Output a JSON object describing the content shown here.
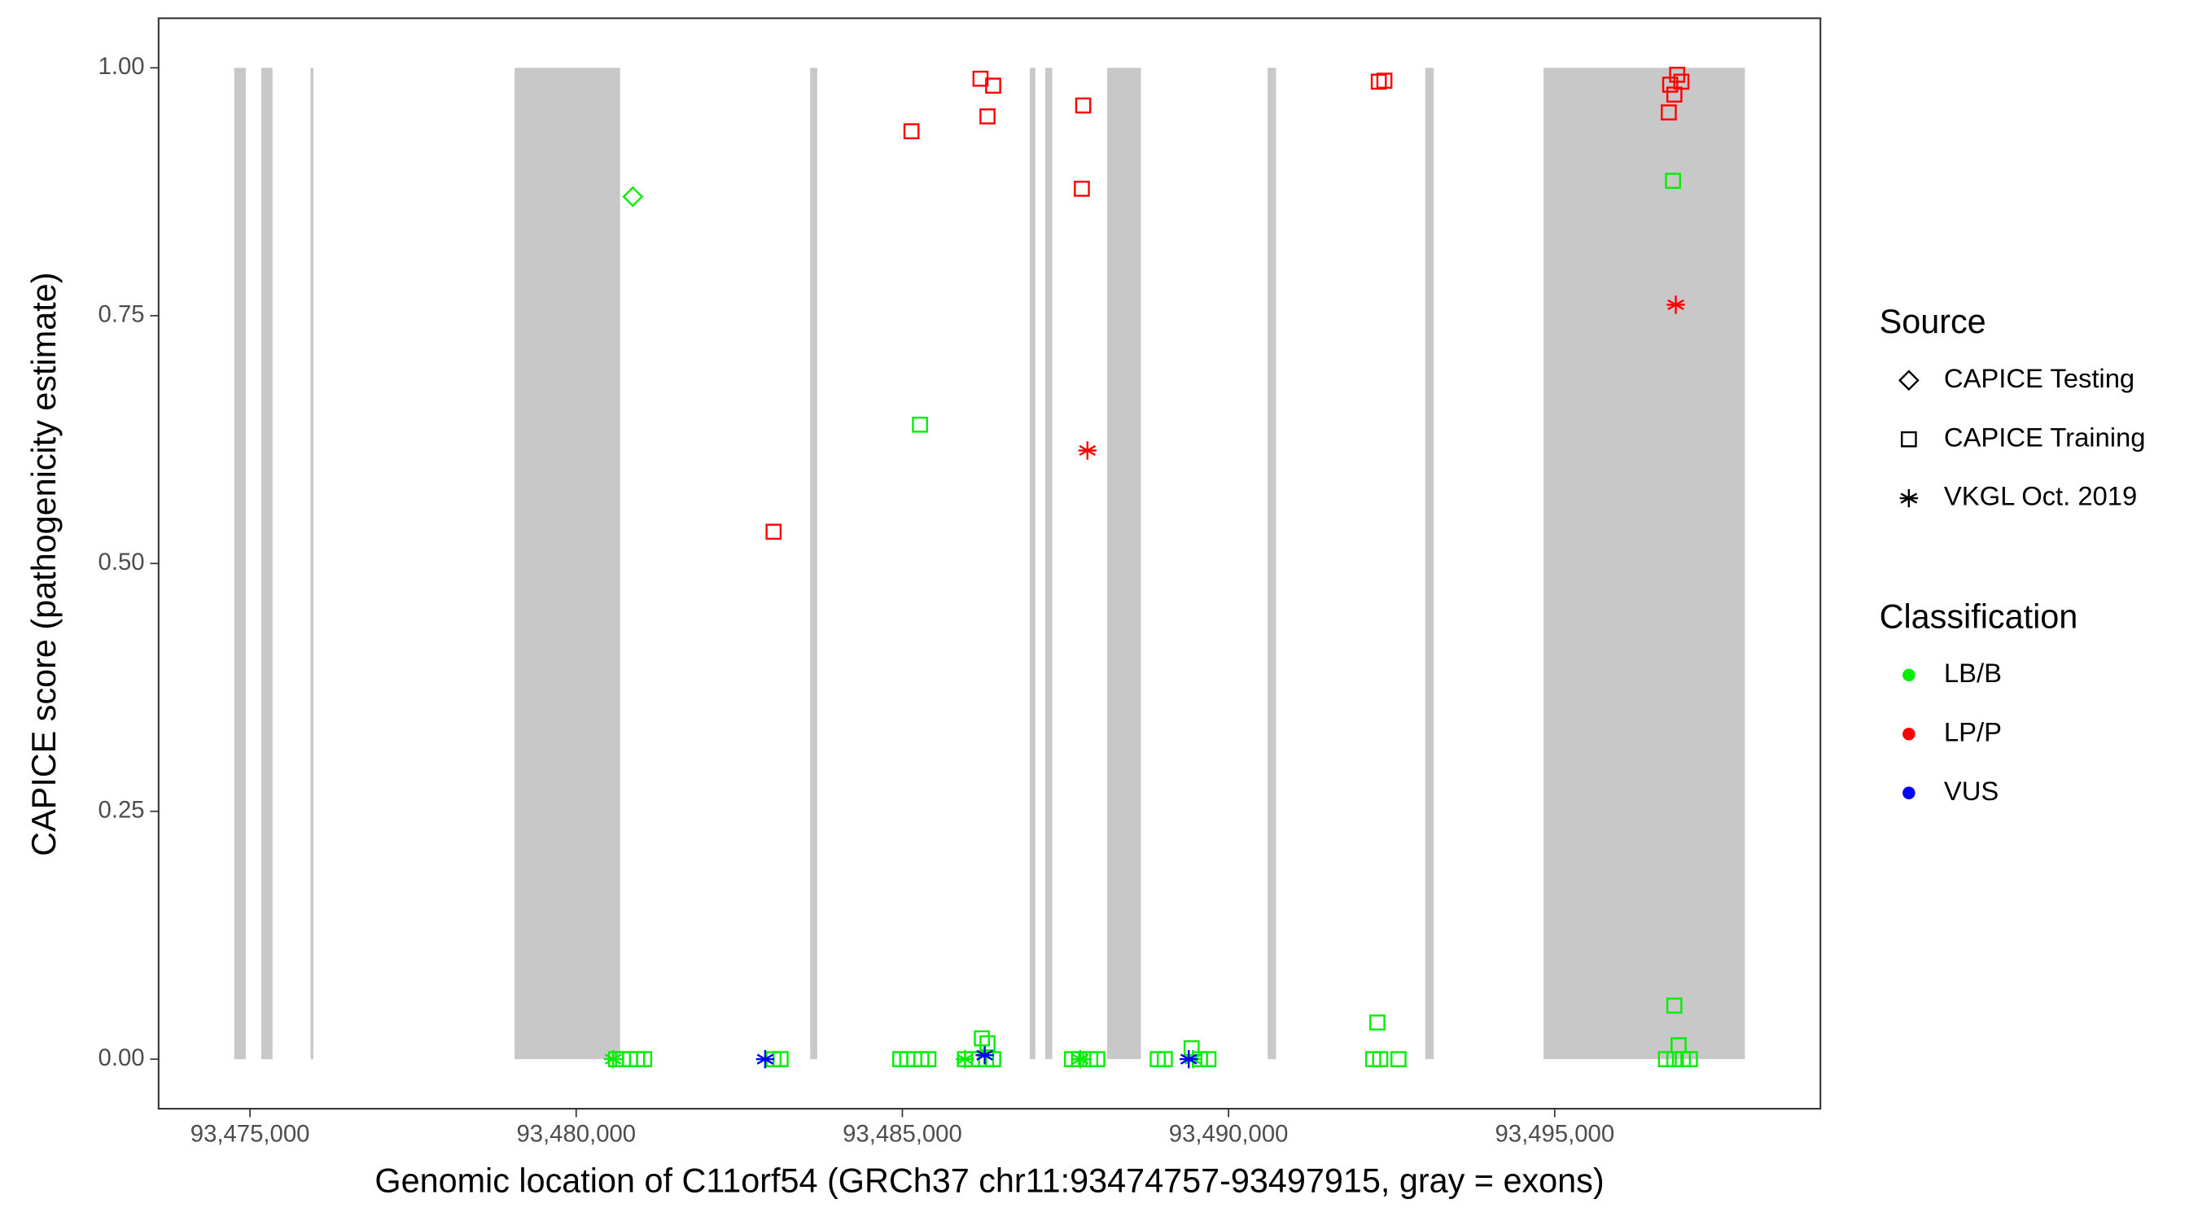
{
  "chart_data": {
    "type": "scatter",
    "x_label": "Genomic location of C11orf54 (GRCh37 chr11:93474757-93497915, gray = exons)",
    "y_label": "CAPICE score (pathogenicity estimate)",
    "xlim": [
      93473599,
      93499073
    ],
    "ylim": [
      -0.05,
      1.05
    ],
    "xticks": [
      {
        "value": 93475000,
        "label": "93,475,000"
      },
      {
        "value": 93480000,
        "label": "93,480,000"
      },
      {
        "value": 93485000,
        "label": "93,485,000"
      },
      {
        "value": 93490000,
        "label": "93,490,000"
      },
      {
        "value": 93495000,
        "label": "93,495,000"
      }
    ],
    "yticks": [
      {
        "value": 0,
        "label": "0.00"
      },
      {
        "value": 0.25,
        "label": "0.25"
      },
      {
        "value": 0.5,
        "label": "0.50"
      },
      {
        "value": 0.75,
        "label": "0.75"
      },
      {
        "value": 1,
        "label": "1.00"
      }
    ],
    "exon_color": "#c8c8c8",
    "exons": [
      [
        93474757,
        93474935
      ],
      [
        93475173,
        93475345
      ],
      [
        93475928,
        93475971
      ],
      [
        93479056,
        93480674
      ],
      [
        93483587,
        93483695
      ],
      [
        93486953,
        93487039
      ],
      [
        93487190,
        93487298
      ],
      [
        93488139,
        93488657
      ],
      [
        93490599,
        93490728
      ],
      [
        93493015,
        93493145
      ],
      [
        93494828,
        93497915
      ]
    ],
    "legends": [
      {
        "title": "Source",
        "entries": [
          {
            "label": "CAPICE Testing",
            "shape": "diamond"
          },
          {
            "label": "CAPICE Training",
            "shape": "square"
          },
          {
            "label": "VKGL Oct. 2019",
            "shape": "asterisk"
          }
        ]
      },
      {
        "title": "Classification",
        "entries": [
          {
            "label": "LB/B",
            "color": "#00ee00"
          },
          {
            "label": "LP/P",
            "color": "#ff0000"
          },
          {
            "label": "VUS",
            "color": "#0000ff"
          }
        ]
      }
    ],
    "series": [
      {
        "source": "CAPICE Testing",
        "classification": "LB/B",
        "x": [
          93480868
        ],
        "y": [
          0.87
        ]
      },
      {
        "source": "CAPICE Training",
        "classification": "LP/P",
        "x": [
          93483026,
          93485140,
          93486198,
          93486392,
          93486305,
          93487772,
          93487751,
          93492303,
          93492389,
          93496748,
          93496770,
          93496834,
          93496877,
          93496942
        ],
        "y": [
          0.532,
          0.936,
          0.989,
          0.982,
          0.951,
          0.962,
          0.878,
          0.986,
          0.987,
          0.955,
          0.983,
          0.973,
          0.993,
          0.986
        ]
      },
      {
        "source": "VKGL Oct. 2019",
        "classification": "LP/P",
        "x": [
          93487837,
          93496856
        ],
        "y": [
          0.614,
          0.761
        ]
      },
      {
        "source": "CAPICE Training",
        "classification": "LB/B",
        "x": [
          93485270,
          93496813,
          93496834,
          93496899,
          93492281,
          93486219,
          93486305,
          93489434,
          93480610,
          93480718,
          93480826,
          93480934,
          93481042,
          93483026,
          93483134,
          93484967,
          93485075,
          93485183,
          93485291,
          93485399,
          93485960,
          93486068,
          93486176,
          93486284,
          93486392,
          93487600,
          93487708,
          93487880,
          93487988,
          93488915,
          93489023,
          93489562,
          93489692,
          93492217,
          93492325,
          93492605,
          93496705,
          93496834,
          93496964,
          93497072
        ],
        "y": [
          0.64,
          0.886,
          0.054,
          0.014,
          0.037,
          0.021,
          0.016,
          0.011,
          0,
          0,
          0,
          0,
          0,
          0,
          0,
          0,
          0,
          0,
          0,
          0,
          0,
          0,
          0,
          0,
          0,
          0,
          0,
          0,
          0,
          0,
          0,
          0,
          0,
          0,
          0,
          0,
          0,
          0,
          0,
          0
        ]
      },
      {
        "source": "VKGL Oct. 2019",
        "classification": "LB/B",
        "x": [
          93480567,
          93485960,
          93487730,
          93489455
        ],
        "y": [
          0,
          0,
          0,
          0
        ]
      },
      {
        "source": "VKGL Oct. 2019",
        "classification": "VUS",
        "x": [
          93482897,
          93486262,
          93489390
        ],
        "y": [
          0,
          0.004,
          0
        ]
      }
    ]
  }
}
